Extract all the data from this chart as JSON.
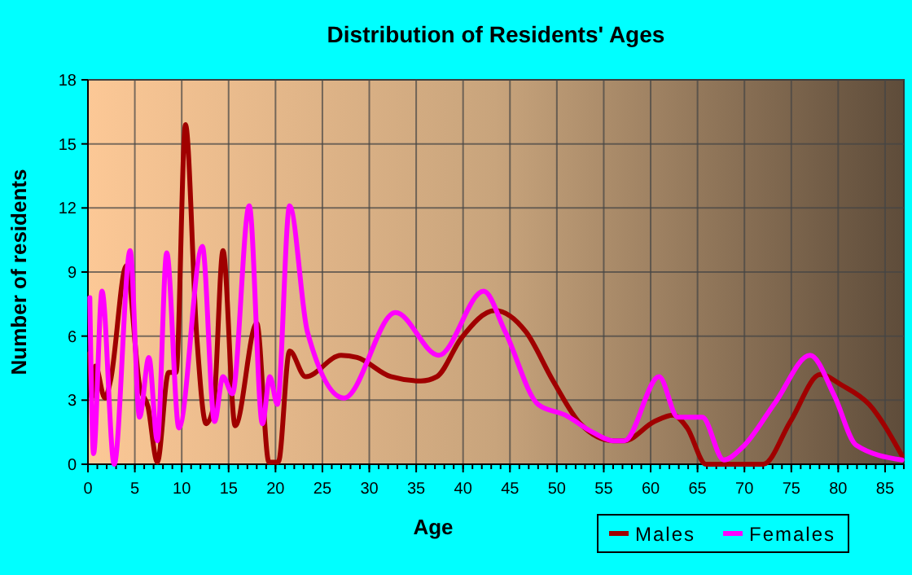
{
  "chart_data": {
    "type": "line",
    "title": "Distribution of Residents' Ages",
    "xlabel": "Age",
    "ylabel": "Number of residents",
    "xlim": [
      0,
      87
    ],
    "xticks": [
      0,
      5,
      10,
      15,
      20,
      25,
      30,
      35,
      40,
      45,
      50,
      55,
      60,
      65,
      70,
      75,
      80,
      85
    ],
    "ylim": [
      0,
      18
    ],
    "yticks": [
      0,
      3,
      6,
      9,
      12,
      15,
      18
    ],
    "grid": true,
    "legend": "bottom right",
    "marker": "none",
    "line_style": "solid",
    "series": [
      {
        "name": "Males",
        "color": "#a00000",
        "x": [
          0.2,
          0.4,
          0.8,
          1.8,
          2.4,
          4.1,
          5.5,
          6.4,
          7.4,
          8.6,
          9.4,
          10.4,
          11.6,
          12.6,
          13.4,
          14.4,
          15.7,
          18,
          19.3,
          20.3,
          21.5,
          23.2,
          27,
          28.7,
          32.3,
          35.5,
          37.2,
          39.8,
          43.4,
          46.7,
          49.6,
          52.5,
          56,
          57.2,
          60.4,
          62.4,
          63.9,
          65.9,
          72,
          74.9,
          78.1,
          80.4,
          83.3,
          86.8
        ],
        "values": [
          5.2,
          3.1,
          4.6,
          3.1,
          3.9,
          9.3,
          3.7,
          2.7,
          0.1,
          4.3,
          4.3,
          15.9,
          6,
          1.9,
          2.7,
          10,
          1.8,
          6.6,
          0.1,
          0.1,
          5.3,
          4.1,
          5.1,
          5,
          4.1,
          3.9,
          4.1,
          5.9,
          7.2,
          6.2,
          3.9,
          1.9,
          1.1,
          1.1,
          2,
          2.3,
          1.7,
          0,
          0,
          2,
          4.2,
          3.7,
          2.8,
          0.4
        ]
      },
      {
        "name": "Females",
        "color": "#ff00ff",
        "x": [
          0.2,
          0.6,
          1.5,
          2.8,
          4.5,
          5.5,
          6.5,
          7.4,
          8.4,
          9.7,
          12.2,
          13.5,
          14.4,
          15.4,
          17.2,
          18.6,
          19.4,
          20.2,
          21.5,
          23.4,
          27.3,
          32.8,
          37.4,
          42.2,
          44.5,
          48,
          50.9,
          53.8,
          56,
          57.2,
          60.9,
          62.9,
          65.5,
          67.8,
          69.8,
          73.3,
          77,
          79.6,
          81.9,
          86.8
        ],
        "values": [
          7.8,
          0.5,
          8.1,
          0,
          10,
          2.2,
          5,
          1.1,
          9.9,
          1.7,
          10.2,
          2,
          4.1,
          3.3,
          12.1,
          1.9,
          4.1,
          2.8,
          12.1,
          6.2,
          3.1,
          7.1,
          5.1,
          8.1,
          6.2,
          2.8,
          2.3,
          1.5,
          1.1,
          1.1,
          4.1,
          2.2,
          2.2,
          0.2,
          0.8,
          2.9,
          5.1,
          3.2,
          0.9,
          0.2
        ]
      }
    ]
  }
}
